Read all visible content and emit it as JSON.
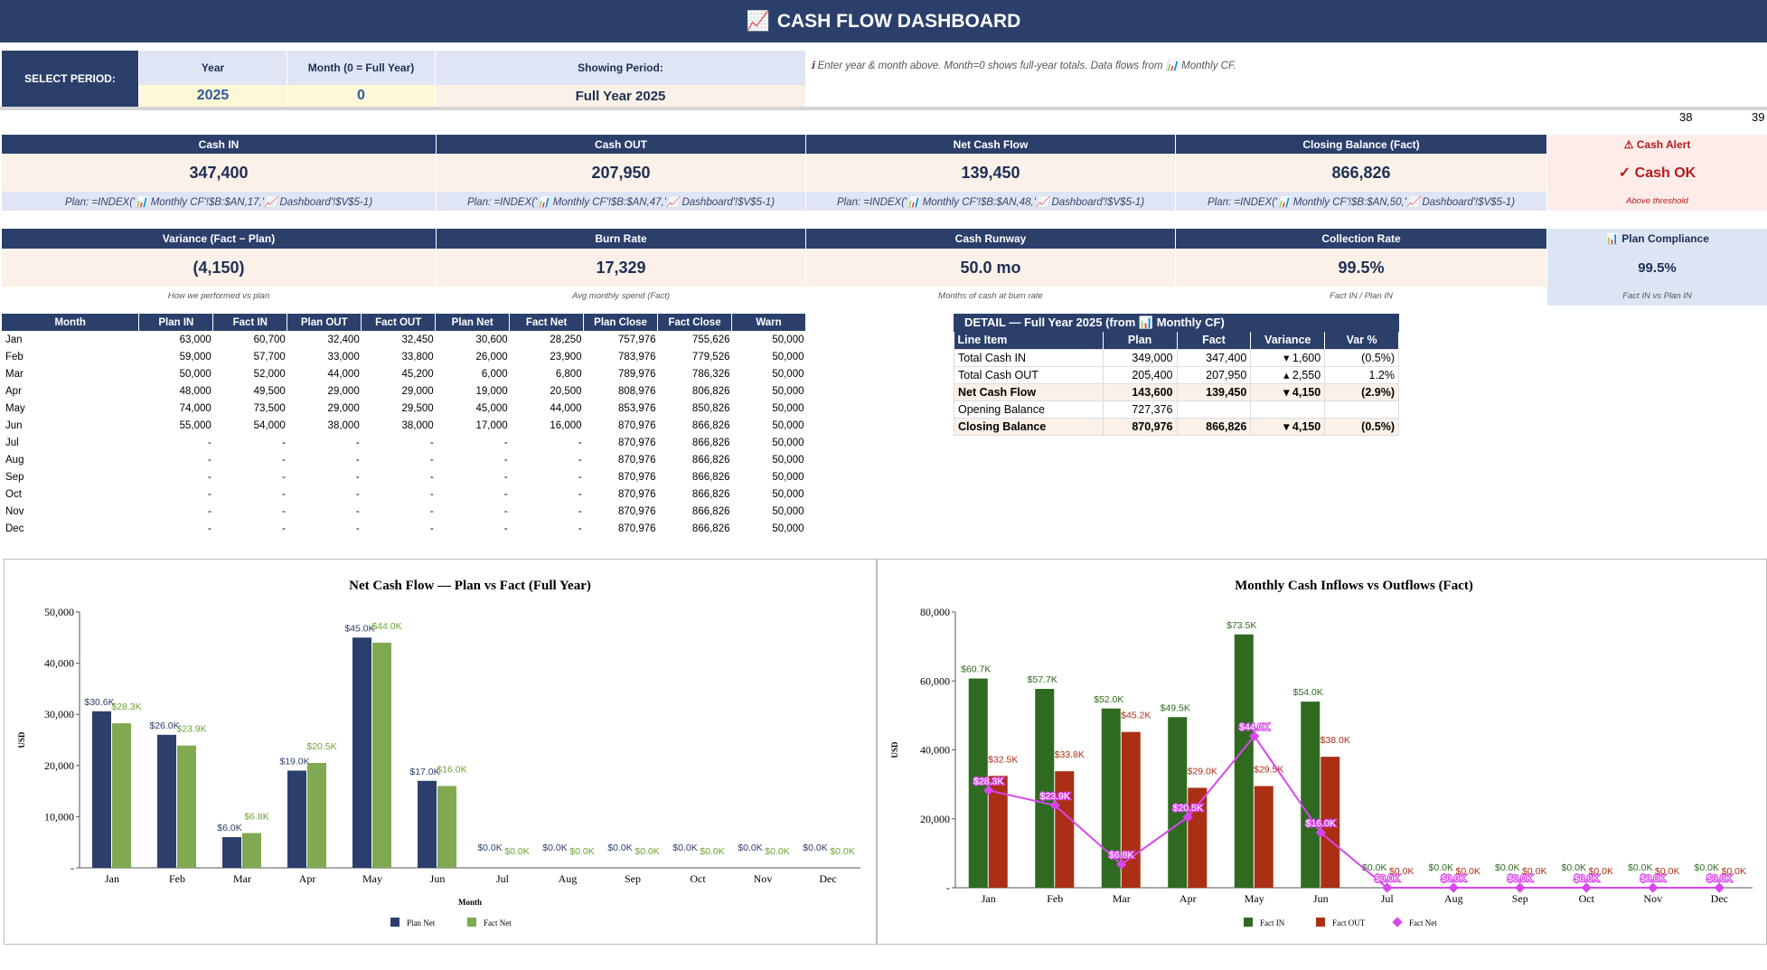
{
  "title": {
    "icon": "📈",
    "text": "CASH FLOW DASHBOARD"
  },
  "period": {
    "select_label": "SELECT PERIOD:",
    "year_label": "Year",
    "month_label": "Month (0 = Full Year)",
    "showing_label": "Showing Period:",
    "year_value": "2025",
    "month_value": "0",
    "showing_value": "Full Year 2025",
    "hint": "ℹ  Enter year & month above. Month=0 shows full-year totals. Data flows from 📊 Monthly CF."
  },
  "col_numbers": [
    "38",
    "39"
  ],
  "kpi_row1": [
    {
      "label": "Cash IN",
      "value": "347,400",
      "sub": "Plan: =INDEX('📊 Monthly CF'!$B:$AN,17,'📈 Dashboard'!$V$5-1)"
    },
    {
      "label": "Cash OUT",
      "value": "207,950",
      "sub": "Plan: =INDEX('📊 Monthly CF'!$B:$AN,47,'📈 Dashboard'!$V$5-1)"
    },
    {
      "label": "Net Cash Flow",
      "value": "139,450",
      "sub": "Plan: =INDEX('📊 Monthly CF'!$B:$AN,48,'📈 Dashboard'!$V$5-1)"
    },
    {
      "label": "Closing Balance (Fact)",
      "value": "866,826",
      "sub": "Plan: =INDEX('📊 Monthly CF'!$B:$AN,50,'📈 Dashboard'!$V$5-1)"
    }
  ],
  "alert": {
    "label": "⚠ Cash Alert",
    "value": "✓ Cash OK",
    "sub": "Above threshold"
  },
  "kpi_row2": [
    {
      "label": "Variance (Fact − Plan)",
      "value": "(4,150)",
      "sub": "How we performed vs plan"
    },
    {
      "label": "Burn Rate",
      "value": "17,329",
      "sub": "Avg monthly spend (Fact)"
    },
    {
      "label": "Cash Runway",
      "value": "50.0 mo",
      "sub": "Months of cash at burn rate"
    },
    {
      "label": "Collection Rate",
      "value": "99.5%",
      "sub": "Fact IN / Plan IN"
    }
  ],
  "compliance": {
    "label": "📊 Plan Compliance",
    "value": "99.5%",
    "sub": "Fact IN vs Plan IN"
  },
  "monthly_table": {
    "headers": [
      "Month",
      "Plan IN",
      "Fact IN",
      "Plan OUT",
      "Fact OUT",
      "Plan Net",
      "Fact Net",
      "Plan Close",
      "Fact Close",
      "Warn"
    ],
    "rows": [
      [
        "Jan",
        "63,000",
        "60,700",
        "32,400",
        "32,450",
        "30,600",
        "28,250",
        "757,976",
        "755,626",
        "50,000"
      ],
      [
        "Feb",
        "59,000",
        "57,700",
        "33,000",
        "33,800",
        "26,000",
        "23,900",
        "783,976",
        "779,526",
        "50,000"
      ],
      [
        "Mar",
        "50,000",
        "52,000",
        "44,000",
        "45,200",
        "6,000",
        "6,800",
        "789,976",
        "786,326",
        "50,000"
      ],
      [
        "Apr",
        "48,000",
        "49,500",
        "29,000",
        "29,000",
        "19,000",
        "20,500",
        "808,976",
        "806,826",
        "50,000"
      ],
      [
        "May",
        "74,000",
        "73,500",
        "29,000",
        "29,500",
        "45,000",
        "44,000",
        "853,976",
        "850,826",
        "50,000"
      ],
      [
        "Jun",
        "55,000",
        "54,000",
        "38,000",
        "38,000",
        "17,000",
        "16,000",
        "870,976",
        "866,826",
        "50,000"
      ],
      [
        "Jul",
        "-",
        "-",
        "-",
        "-",
        "-",
        "-",
        "870,976",
        "866,826",
        "50,000"
      ],
      [
        "Aug",
        "-",
        "-",
        "-",
        "-",
        "-",
        "-",
        "870,976",
        "866,826",
        "50,000"
      ],
      [
        "Sep",
        "-",
        "-",
        "-",
        "-",
        "-",
        "-",
        "870,976",
        "866,826",
        "50,000"
      ],
      [
        "Oct",
        "-",
        "-",
        "-",
        "-",
        "-",
        "-",
        "870,976",
        "866,826",
        "50,000"
      ],
      [
        "Nov",
        "-",
        "-",
        "-",
        "-",
        "-",
        "-",
        "870,976",
        "866,826",
        "50,000"
      ],
      [
        "Dec",
        "-",
        "-",
        "-",
        "-",
        "-",
        "-",
        "870,976",
        "866,826",
        "50,000"
      ]
    ]
  },
  "detail": {
    "title": "DETAIL — Full Year 2025  (from 📊 Monthly CF)",
    "headers": [
      "Line Item",
      "Plan",
      "Fact",
      "Variance",
      "Var %"
    ],
    "rows": [
      {
        "cells": [
          "Total Cash IN",
          "349,000",
          "347,400",
          "▾ 1,600",
          "(0.5%)"
        ],
        "bold": false
      },
      {
        "cells": [
          "Total Cash OUT",
          "205,400",
          "207,950",
          "▴ 2,550",
          "1.2%"
        ],
        "bold": false
      },
      {
        "cells": [
          "Net Cash Flow",
          "143,600",
          "139,450",
          "▾ 4,150",
          "(2.9%)"
        ],
        "bold": true
      },
      {
        "cells": [
          "Opening Balance",
          "727,376",
          "",
          "",
          ""
        ],
        "bold": false
      },
      {
        "cells": [
          "Closing Balance",
          "870,976",
          "866,826",
          "▾ 4,150",
          "(0.5%)"
        ],
        "bold": true
      }
    ]
  },
  "colors": {
    "navy": "#2b3f6b",
    "plan_net": "#2c3e6c",
    "fact_net_bar": "#7faa51",
    "fact_in": "#2e6a1f",
    "fact_out": "#ab2f15",
    "fact_net_line": "#d946ef"
  },
  "chart_data": [
    {
      "type": "bar",
      "title": "Net Cash Flow — Plan vs Fact (Full Year)",
      "xlabel": "Month",
      "ylabel": "USD",
      "categories": [
        "Jan",
        "Feb",
        "Mar",
        "Apr",
        "May",
        "Jun",
        "Jul",
        "Aug",
        "Sep",
        "Oct",
        "Nov",
        "Dec"
      ],
      "ylim": [
        0,
        50000
      ],
      "yticks": [
        "-",
        "10,000",
        "20,000",
        "30,000",
        "40,000",
        "50,000"
      ],
      "legend": "bottom",
      "series": [
        {
          "name": "Plan Net",
          "values": [
            30600,
            26000,
            6000,
            19000,
            45000,
            17000,
            0,
            0,
            0,
            0,
            0,
            0
          ],
          "labels": [
            "$30.6K",
            "$26.0K",
            "$6.0K",
            "$19.0K",
            "$45.0K",
            "$17.0K",
            "$0.0K",
            "$0.0K",
            "$0.0K",
            "$0.0K",
            "$0.0K",
            "$0.0K"
          ]
        },
        {
          "name": "Fact Net",
          "values": [
            28250,
            23900,
            6800,
            20500,
            44000,
            16000,
            0,
            0,
            0,
            0,
            0,
            0
          ],
          "labels": [
            "$28.3K",
            "$23.9K",
            "$6.8K",
            "$20.5K",
            "$44.0K",
            "$16.0K",
            "$0.0K",
            "$0.0K",
            "$0.0K",
            "$0.0K",
            "$0.0K",
            "$0.0K"
          ]
        }
      ]
    },
    {
      "type": "bar",
      "title": "Monthly Cash Inflows vs Outflows (Fact)",
      "xlabel": "",
      "ylabel": "USD",
      "categories": [
        "Jan",
        "Feb",
        "Mar",
        "Apr",
        "May",
        "Jun",
        "Jul",
        "Aug",
        "Sep",
        "Oct",
        "Nov",
        "Dec"
      ],
      "ylim": [
        0,
        80000
      ],
      "yticks": [
        "-",
        "20,000",
        "40,000",
        "60,000",
        "80,000"
      ],
      "legend": "bottom",
      "series": [
        {
          "name": "Fact IN",
          "kind": "bar",
          "values": [
            60700,
            57700,
            52000,
            49500,
            73500,
            54000,
            0,
            0,
            0,
            0,
            0,
            0
          ],
          "labels": [
            "$60.7K",
            "$57.7K",
            "$52.0K",
            "$49.5K",
            "$73.5K",
            "$54.0K",
            "$0.0K",
            "$0.0K",
            "$0.0K",
            "$0.0K",
            "$0.0K",
            "$0.0K"
          ]
        },
        {
          "name": "Fact OUT",
          "kind": "bar",
          "values": [
            32450,
            33800,
            45200,
            29000,
            29500,
            38000,
            0,
            0,
            0,
            0,
            0,
            0
          ],
          "labels": [
            "$32.5K",
            "$33.8K",
            "$45.2K",
            "$29.0K",
            "$29.5K",
            "$38.0K",
            "$0.0K",
            "$0.0K",
            "$0.0K",
            "$0.0K",
            "$0.0K",
            "$0.0K"
          ]
        },
        {
          "name": "Fact Net",
          "kind": "line",
          "values": [
            28250,
            23900,
            6800,
            20500,
            44000,
            16000,
            0,
            0,
            0,
            0,
            0,
            0
          ],
          "labels": [
            "$28.3K",
            "$23.9K",
            "$6.8K",
            "$20.5K",
            "$44.0K",
            "$16.0K",
            "$0.0K",
            "$0.0K",
            "$0.0K",
            "$0.0K",
            "$0.0K",
            "$0.0K"
          ]
        }
      ]
    }
  ]
}
